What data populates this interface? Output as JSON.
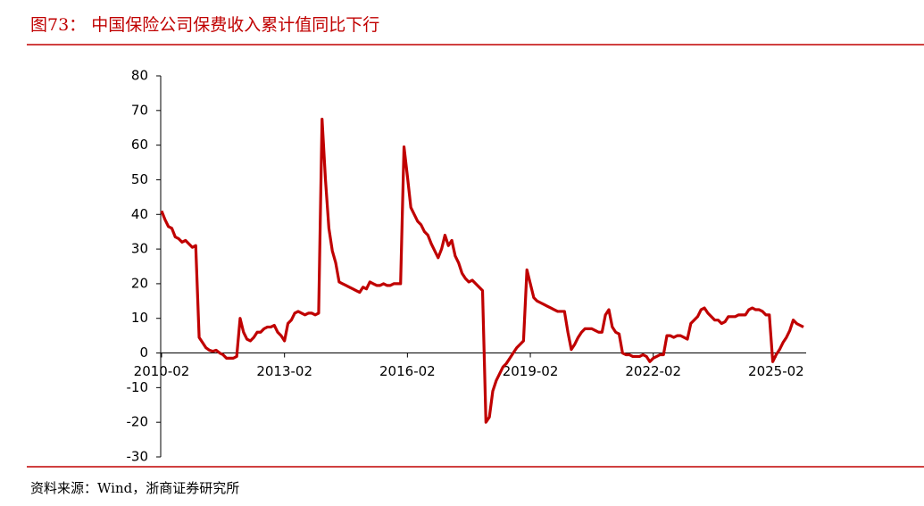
{
  "chart_data": {
    "type": "line",
    "title": "图73：  中国保险公司保费收入累计值同比下行",
    "source": "资料来源：Wind，浙商证券研究所",
    "color": "#c00000",
    "x": [
      "2010-02",
      "2010-03",
      "2010-04",
      "2010-05",
      "2010-06",
      "2010-07",
      "2010-08",
      "2010-09",
      "2010-10",
      "2010-11",
      "2010-12",
      "2011-01",
      "2011-02",
      "2011-03",
      "2011-04",
      "2011-05",
      "2011-06",
      "2011-07",
      "2011-08",
      "2011-09",
      "2011-10",
      "2011-11",
      "2011-12",
      "2012-01",
      "2012-02",
      "2012-03",
      "2012-04",
      "2012-05",
      "2012-06",
      "2012-07",
      "2012-08",
      "2012-09",
      "2012-10",
      "2012-11",
      "2012-12",
      "2013-01",
      "2013-02",
      "2013-03",
      "2013-04",
      "2013-05",
      "2013-06",
      "2013-07",
      "2013-08",
      "2013-09",
      "2013-10",
      "2013-11",
      "2013-12",
      "2014-01",
      "2014-02",
      "2014-03",
      "2014-04",
      "2014-05",
      "2014-06",
      "2014-07",
      "2014-08",
      "2014-09",
      "2014-10",
      "2014-11",
      "2014-12",
      "2015-01",
      "2015-02",
      "2015-03",
      "2015-04",
      "2015-05",
      "2015-06",
      "2015-07",
      "2015-08",
      "2015-09",
      "2015-10",
      "2015-11",
      "2015-12",
      "2016-01",
      "2016-02",
      "2016-03",
      "2016-04",
      "2016-05",
      "2016-06",
      "2016-07",
      "2016-08",
      "2016-09",
      "2016-10",
      "2016-11",
      "2016-12",
      "2017-01",
      "2017-02",
      "2017-03",
      "2017-04",
      "2017-05",
      "2017-06",
      "2017-07",
      "2017-08",
      "2017-09",
      "2017-10",
      "2017-11",
      "2017-12",
      "2018-01",
      "2018-02",
      "2018-03",
      "2018-04",
      "2018-05",
      "2018-06",
      "2018-07",
      "2018-08",
      "2018-09",
      "2018-10",
      "2018-11",
      "2018-12",
      "2019-01",
      "2019-02",
      "2019-03",
      "2019-04",
      "2019-05",
      "2019-06",
      "2019-07",
      "2019-08",
      "2019-09",
      "2019-10",
      "2019-11",
      "2019-12",
      "2020-01",
      "2020-02",
      "2020-03",
      "2020-04",
      "2020-05",
      "2020-06",
      "2020-07",
      "2020-08",
      "2020-09",
      "2020-10",
      "2020-11",
      "2020-12",
      "2021-01",
      "2021-02",
      "2021-03",
      "2021-04",
      "2021-05",
      "2021-06",
      "2021-07",
      "2021-08",
      "2021-09",
      "2021-10",
      "2021-11",
      "2021-12",
      "2022-01",
      "2022-02",
      "2022-03",
      "2022-04",
      "2022-05",
      "2022-06",
      "2022-07",
      "2022-08",
      "2022-09",
      "2022-10",
      "2022-11",
      "2022-12",
      "2023-01",
      "2023-02",
      "2023-03",
      "2023-04",
      "2023-05",
      "2023-06",
      "2023-07",
      "2023-08",
      "2023-09",
      "2023-10",
      "2023-11",
      "2023-12",
      "2024-01",
      "2024-02",
      "2024-03",
      "2024-04",
      "2024-05",
      "2024-06",
      "2024-07",
      "2024-08",
      "2024-09",
      "2024-10",
      "2024-11",
      "2024-12",
      "2025-01",
      "2025-02",
      "2025-03",
      "2025-04",
      "2025-05",
      "2025-06",
      "2025-07",
      "2025-08",
      "2025-09",
      "2025-10"
    ],
    "values": [
      41,
      38.5,
      36.5,
      36,
      33.5,
      33,
      32,
      32.5,
      31.5,
      30.5,
      31,
      4.5,
      3,
      1.5,
      0.8,
      0.5,
      0.8,
      0,
      -0.5,
      -1.5,
      -1.5,
      -1.5,
      -1,
      10,
      6,
      4,
      3.5,
      4.5,
      6,
      6,
      7,
      7.5,
      7.5,
      8,
      6,
      5,
      3.5,
      8.5,
      9.5,
      11.5,
      12,
      11.5,
      11,
      11.5,
      11.5,
      11,
      11.5,
      67.5,
      50,
      36,
      29.5,
      26,
      20.5,
      20,
      19.5,
      19,
      18.5,
      18,
      17.5,
      19,
      18.5,
      20.5,
      20,
      19.5,
      19.5,
      20,
      19.5,
      19.5,
      20,
      20,
      20,
      59.5,
      51,
      42,
      40,
      38,
      37,
      35,
      34,
      31.5,
      29.5,
      27.5,
      30,
      34,
      31,
      32.5,
      28,
      26,
      23,
      21.5,
      20.5,
      21,
      20,
      19,
      18,
      -20,
      -18.5,
      -11,
      -8,
      -6,
      -4,
      -3,
      -1.5,
      0,
      1.5,
      2.5,
      3.5,
      24,
      20,
      16,
      15,
      14.5,
      14,
      13.5,
      13,
      12.5,
      12,
      12,
      12,
      6,
      1,
      2.5,
      4.5,
      6,
      7,
      7,
      7,
      6.5,
      6,
      6,
      11,
      12.5,
      7.5,
      6,
      5.5,
      0,
      -0.5,
      -0.5,
      -1,
      -1,
      -1,
      -0.5,
      -1,
      -2.5,
      -1.5,
      -1,
      -0.5,
      -0.5,
      5,
      5,
      4.5,
      5,
      5,
      4.5,
      4,
      8.5,
      9.5,
      10.5,
      12.5,
      13,
      11.5,
      10.5,
      9.5,
      9.5,
      8.5,
      9,
      10.5,
      10.5,
      10.5,
      11,
      11,
      11,
      12.5,
      13,
      12.5,
      12.5,
      12,
      11,
      11,
      -2.5,
      -0.5,
      1,
      3,
      4.5,
      6.5,
      9.5,
      8.5,
      8,
      7.5
    ],
    "xticks": [
      "2010-02",
      "2013-02",
      "2016-02",
      "2019-02",
      "2022-02",
      "2025-02"
    ],
    "ylim": [
      -30,
      80
    ],
    "yticks": [
      -30,
      -20,
      -10,
      0,
      10,
      20,
      30,
      40,
      50,
      60,
      70,
      80
    ]
  }
}
